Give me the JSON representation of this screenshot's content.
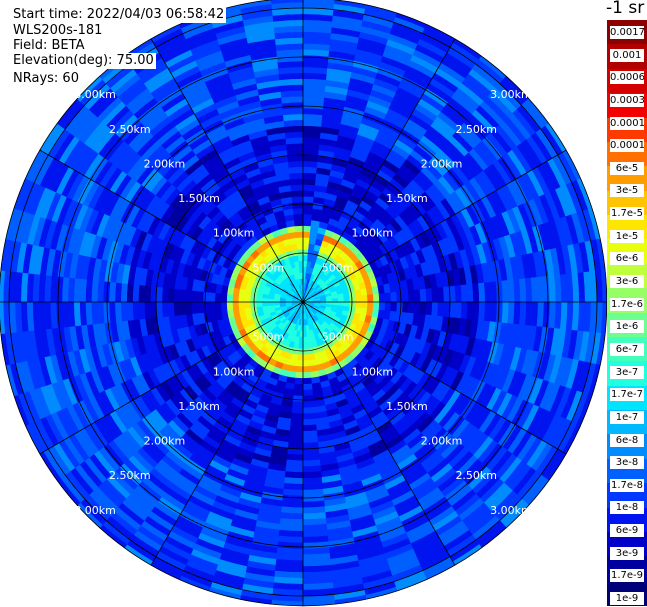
{
  "header": {
    "start_time": "Start time: 2022/04/03 06:58:42",
    "instrument": "WLS200s-181",
    "field": "Field: BETA",
    "elevation": "Elevation(deg): 75.00",
    "nrays": "NRays: 60"
  },
  "colorbar": {
    "unit": "-1 sr",
    "colors": [
      "#8b0000",
      "#b00000",
      "#d40000",
      "#f20000",
      "#ff3a00",
      "#ff7000",
      "#ff9c00",
      "#ffc400",
      "#ffe600",
      "#e8ff10",
      "#c0ff3c",
      "#96ff66",
      "#6cff90",
      "#44ffbc",
      "#20ffe0",
      "#00e4ff",
      "#00b8ff",
      "#008cff",
      "#0060ff",
      "#0038ff",
      "#0014f0",
      "#0000c8",
      "#0000a0",
      "#000078"
    ],
    "labels": [
      "0.0017",
      "0.001",
      "0.0006",
      "0.0003",
      "0.00017",
      "0.0001",
      "6e-5",
      "3e-5",
      "1.7e-5",
      "1e-5",
      "6e-6",
      "3e-6",
      "1.7e-6",
      "1e-6",
      "6e-7",
      "3e-7",
      "1.7e-7",
      "1e-7",
      "6e-8",
      "3e-8",
      "1.7e-8",
      "1e-8",
      "6e-9",
      "3e-9",
      "1.7e-9",
      "1e-9"
    ]
  },
  "chart_data": {
    "type": "heatmap",
    "projection": "polar-ppi",
    "field": "BETA",
    "rays": 60,
    "range_rings_km": [
      0.5,
      1.0,
      1.5,
      2.0,
      2.5,
      3.0
    ],
    "ring_labels": [
      "500m",
      "1.00km",
      "1.50km",
      "2.00km",
      "2.50km",
      "3.00km"
    ],
    "max_range_km": 3.1,
    "radial_profile": [
      {
        "range_km": 0.0,
        "beta": "1.7e-7"
      },
      {
        "range_km": 0.5,
        "beta": "3e-6"
      },
      {
        "range_km": 0.6,
        "beta": "3e-5"
      },
      {
        "range_km": 0.72,
        "beta": "6e-5"
      },
      {
        "range_km": 0.8,
        "beta": "3e-7"
      },
      {
        "range_km": 1.0,
        "beta": "1e-8"
      },
      {
        "range_km": 2.0,
        "beta": "3e-8"
      },
      {
        "range_km": 3.0,
        "beta": "6e-8"
      }
    ]
  }
}
